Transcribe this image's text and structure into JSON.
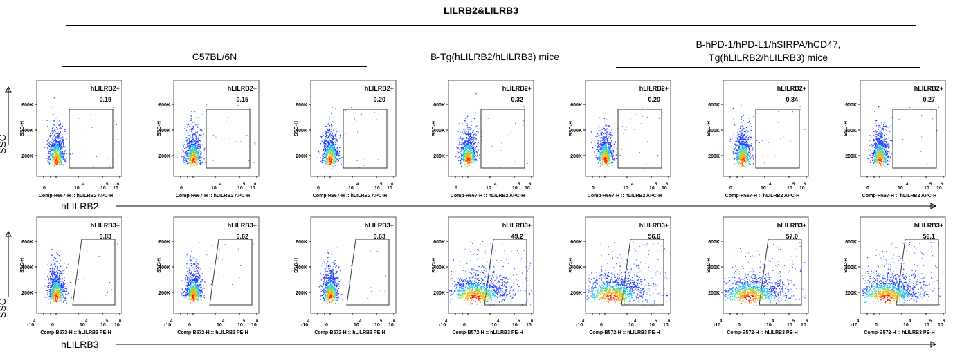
{
  "title": "LILRB2&LILRB3",
  "groups": [
    {
      "label": "C57BL/6N"
    },
    {
      "label": "B-Tg(hLILRB2/hLILRB3) mice"
    },
    {
      "label": "B-hPD-1/hPD-L1/hSIRPA/hCD47,\nTg(hLILRB2/hLILRB3) mice"
    }
  ],
  "row_labels": {
    "y": [
      "SSC",
      "SSC"
    ],
    "x": [
      "hLILRB2",
      "hLILRB3"
    ]
  },
  "chart_data": [
    {
      "type": "scatter",
      "row": "hLILRB2",
      "gate_label": "hLILRB2+",
      "xlabel": "Comp-R667-H :: hLILRB2 APC-H",
      "ylabel": "SSC-H",
      "yticks": [
        "200K",
        "400K",
        "600K"
      ],
      "xticks": [
        "0",
        "10",
        "4",
        "10",
        "5",
        "10",
        "6"
      ],
      "percentages": [
        "0.19",
        "0.15",
        "0.20",
        "0.32",
        "0.20",
        "0.34",
        "0.27"
      ]
    },
    {
      "type": "scatter",
      "row": "hLILRB3",
      "gate_label": "hLILRB3+",
      "xlabel": "Comp-B572-H :: hLILRB3 PE-H",
      "ylabel": "SSC-H",
      "yticks": [
        "200K",
        "400K",
        "600K"
      ],
      "xticks": [
        "-10",
        "4",
        "0",
        "10",
        "4",
        "10",
        "5",
        "10",
        "6"
      ],
      "percentages": [
        "0.83",
        "0.62",
        "0.63",
        "49.2",
        "56.6",
        "57.0",
        "56.1"
      ]
    }
  ]
}
